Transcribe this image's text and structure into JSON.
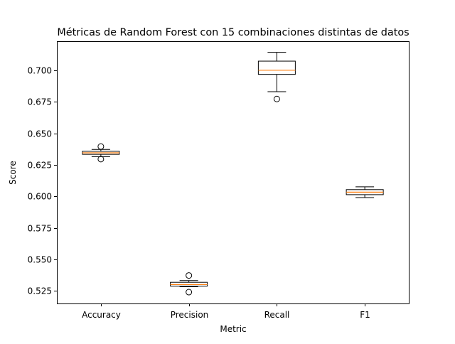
{
  "chart_data": {
    "type": "box",
    "title": "Métricas de Random Forest con 15 combinaciones distintas de datos",
    "xlabel": "Metric",
    "ylabel": "Score",
    "ylim": [
      0.515,
      0.723
    ],
    "yticks": [
      0.525,
      0.55,
      0.575,
      0.6,
      0.625,
      0.65,
      0.675,
      0.7
    ],
    "ytick_labels": [
      "0.525",
      "0.550",
      "0.575",
      "0.600",
      "0.625",
      "0.650",
      "0.675",
      "0.700"
    ],
    "grid": false,
    "colors": {
      "box": "#000000",
      "median": "#ff7f0e",
      "whisker": "#000000",
      "flier": "#000000"
    },
    "categories": [
      "Accuracy",
      "Precision",
      "Recall",
      "F1"
    ],
    "boxes": [
      {
        "label": "Accuracy",
        "whisker_low": 0.6315,
        "q1": 0.6333,
        "median": 0.6345,
        "q3": 0.6357,
        "whisker_high": 0.6372,
        "outliers": [
          0.6295,
          0.6395
        ]
      },
      {
        "label": "Precision",
        "whisker_low": 0.5283,
        "q1": 0.5288,
        "median": 0.53,
        "q3": 0.5318,
        "whisker_high": 0.5332,
        "outliers": [
          0.524,
          0.5372
        ]
      },
      {
        "label": "Recall",
        "whisker_low": 0.683,
        "q1": 0.6967,
        "median": 0.7,
        "q3": 0.7072,
        "whisker_high": 0.7142,
        "outliers": [
          0.6772
        ]
      },
      {
        "label": "F1",
        "whisker_low": 0.599,
        "q1": 0.6013,
        "median": 0.6033,
        "q3": 0.6053,
        "whisker_high": 0.6075,
        "outliers": []
      }
    ]
  }
}
